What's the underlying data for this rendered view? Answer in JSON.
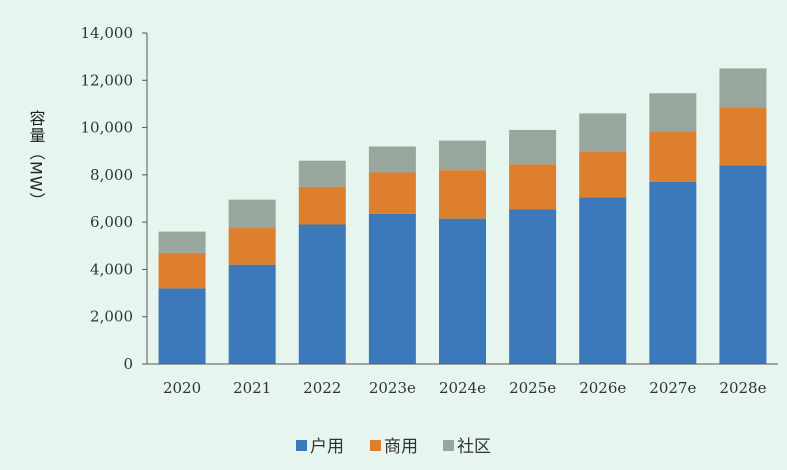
{
  "chart_data": {
    "type": "bar",
    "stacked": true,
    "categories": [
      "2020",
      "2021",
      "2022",
      "2023e",
      "2024e",
      "2025e",
      "2026e",
      "2027e",
      "2028e"
    ],
    "series": [
      {
        "name": "户用",
        "color": "#3b79ba",
        "values": [
          3200,
          4200,
          5900,
          6350,
          6150,
          6550,
          7050,
          7700,
          8400
        ]
      },
      {
        "name": "商用",
        "color": "#dd7f2c",
        "values": [
          1500,
          1550,
          1600,
          1750,
          2050,
          1900,
          1950,
          2150,
          2450
        ]
      },
      {
        "name": "社区",
        "color": "#98a69e",
        "values": [
          900,
          1200,
          1100,
          1100,
          1250,
          1450,
          1600,
          1600,
          1650
        ]
      }
    ],
    "ylabel": "容量（MW）",
    "ylim": [
      0,
      14000
    ],
    "yticks": [
      0,
      2000,
      4000,
      6000,
      8000,
      10000,
      12000,
      14000
    ],
    "ytick_labels": [
      "0",
      "2,000",
      "4,000",
      "6,000",
      "8,000",
      "10,000",
      "12,000",
      "14,000"
    ],
    "grid": false,
    "legend_position": "bottom"
  }
}
